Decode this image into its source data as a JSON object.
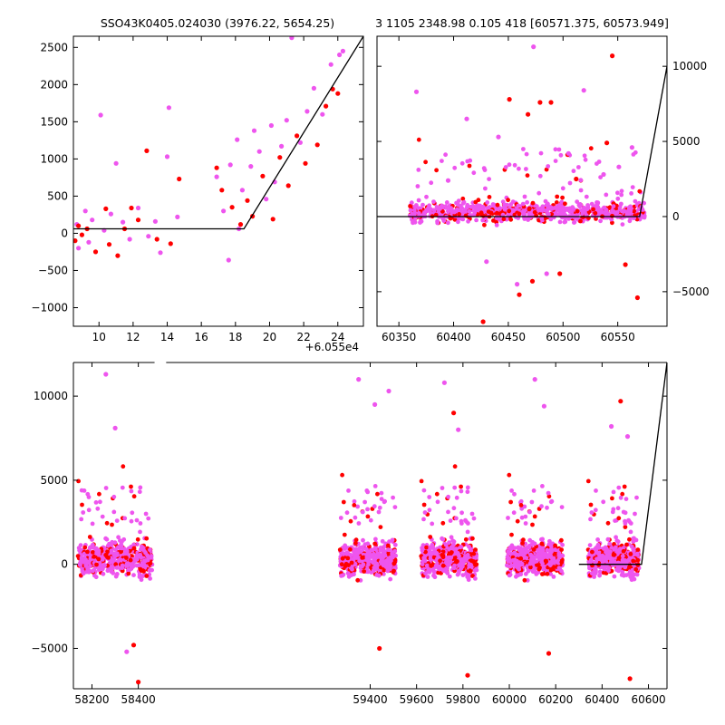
{
  "title_left": "SSO43K0405.024030 (3976.22, 5654.25)",
  "title_right": "3 1105 2348.98 0.105 418 [60571.375, 60573.949]",
  "chart_data": [
    {
      "type": "scatter",
      "panel": "top-left",
      "x_offset_label": "+6.055e4",
      "xlim": [
        8.5,
        25.5
      ],
      "ylim": [
        -1250,
        2650
      ],
      "xticks": [
        10,
        12,
        14,
        16,
        18,
        20,
        22,
        24
      ],
      "yticks": [
        -1000,
        -500,
        0,
        500,
        1000,
        1500,
        2000,
        2500
      ],
      "series": [
        {
          "color": "#ee55ee",
          "values": [
            [
              8.7,
              120
            ],
            [
              8.8,
              -200
            ],
            [
              9.2,
              300
            ],
            [
              9.4,
              -120
            ],
            [
              9.6,
              180
            ],
            [
              10.1,
              1590
            ],
            [
              10.3,
              40
            ],
            [
              10.7,
              260
            ],
            [
              11.0,
              940
            ],
            [
              11.4,
              150
            ],
            [
              11.8,
              -80
            ],
            [
              12.3,
              340
            ],
            [
              12.9,
              -40
            ],
            [
              13.3,
              160
            ],
            [
              13.6,
              -260
            ],
            [
              14.1,
              1690
            ],
            [
              14.0,
              1030
            ],
            [
              14.6,
              220
            ],
            [
              16.9,
              760
            ],
            [
              17.3,
              300
            ],
            [
              17.7,
              920
            ],
            [
              17.6,
              -360
            ],
            [
              18.1,
              1260
            ],
            [
              18.2,
              60
            ],
            [
              18.4,
              580
            ],
            [
              18.9,
              900
            ],
            [
              19.1,
              1380
            ],
            [
              19.4,
              1100
            ],
            [
              19.8,
              460
            ],
            [
              20.1,
              1450
            ],
            [
              20.3,
              690
            ],
            [
              20.7,
              1170
            ],
            [
              21.0,
              1520
            ],
            [
              21.3,
              2630
            ],
            [
              21.8,
              1220
            ],
            [
              22.2,
              1640
            ],
            [
              22.6,
              1950
            ],
            [
              23.1,
              1600
            ],
            [
              23.6,
              2270
            ],
            [
              24.1,
              2400
            ],
            [
              24.3,
              2450
            ]
          ]
        },
        {
          "color": "#ff0000",
          "values": [
            [
              8.6,
              -100
            ],
            [
              8.8,
              100
            ],
            [
              9.0,
              -20
            ],
            [
              9.3,
              60
            ],
            [
              9.8,
              -250
            ],
            [
              10.4,
              330
            ],
            [
              10.6,
              -150
            ],
            [
              11.1,
              -300
            ],
            [
              11.5,
              60
            ],
            [
              11.9,
              340
            ],
            [
              12.3,
              180
            ],
            [
              12.8,
              1110
            ],
            [
              13.4,
              -80
            ],
            [
              14.2,
              -140
            ],
            [
              14.7,
              730
            ],
            [
              16.9,
              880
            ],
            [
              17.2,
              580
            ],
            [
              17.8,
              350
            ],
            [
              18.3,
              120
            ],
            [
              18.7,
              440
            ],
            [
              19.0,
              230
            ],
            [
              19.6,
              770
            ],
            [
              20.2,
              190
            ],
            [
              20.6,
              1020
            ],
            [
              21.1,
              640
            ],
            [
              21.6,
              1310
            ],
            [
              22.1,
              940
            ],
            [
              22.8,
              1190
            ],
            [
              23.3,
              1710
            ],
            [
              23.7,
              1940
            ],
            [
              24.0,
              1880
            ]
          ]
        }
      ],
      "fit_line": [
        [
          8.5,
          60
        ],
        [
          18.5,
          60
        ],
        [
          25.5,
          2650
        ]
      ]
    },
    {
      "type": "scatter",
      "panel": "top-right",
      "xlim": [
        60330,
        60595
      ],
      "ylim": [
        -7300,
        12000
      ],
      "xticks": [
        60350,
        60400,
        60450,
        60500,
        60550
      ],
      "yticks": [
        -5000,
        0,
        5000,
        10000
      ],
      "dense_x_range": [
        60360,
        60575
      ],
      "series": [
        {
          "color": "#ee55ee",
          "values": [
            [
              60366,
              8300
            ],
            [
              60395,
              2400
            ],
            [
              60412,
              6500
            ],
            [
              60430,
              -3000
            ],
            [
              60441,
              5300
            ],
            [
              60458,
              -4500
            ],
            [
              60473,
              11300
            ],
            [
              60485,
              -3800
            ],
            [
              60505,
              4200
            ],
            [
              60519,
              8400
            ],
            [
              60537,
              2800
            ],
            [
              60551,
              3300
            ],
            [
              60563,
              4600
            ]
          ]
        },
        {
          "color": "#ff0000",
          "values": [
            [
              60427,
              -7000
            ],
            [
              60451,
              7800
            ],
            [
              60460,
              -5200
            ],
            [
              60468,
              6800
            ],
            [
              60472,
              -4300
            ],
            [
              60479,
              7600
            ],
            [
              60489,
              7600
            ],
            [
              60497,
              -3800
            ],
            [
              60512,
              2500
            ],
            [
              60540,
              4900
            ],
            [
              60545,
              10700
            ],
            [
              60557,
              -3200
            ],
            [
              60568,
              -5400
            ]
          ]
        }
      ],
      "fit_line": [
        [
          60330,
          0
        ],
        [
          60570,
          0
        ],
        [
          60595,
          10000
        ]
      ]
    },
    {
      "type": "scatter",
      "panel": "bottom",
      "xlim": [
        58120,
        60680
      ],
      "ylim": [
        -7400,
        12000
      ],
      "xticks": [
        58200,
        58400,
        59400,
        59600,
        59800,
        60000,
        60200,
        60400,
        60600
      ],
      "yticks": [
        -5000,
        0,
        5000,
        10000
      ],
      "segments": [
        [
          58140,
          58460
        ],
        [
          59270,
          59510
        ],
        [
          59620,
          59860
        ],
        [
          59990,
          60230
        ],
        [
          60340,
          60560
        ]
      ],
      "series": [
        {
          "color": "#ee55ee",
          "values": [
            [
              58260,
              11300
            ],
            [
              58300,
              8100
            ],
            [
              58350,
              -5200
            ],
            [
              59350,
              11000
            ],
            [
              59420,
              9500
            ],
            [
              59480,
              10300
            ],
            [
              59720,
              10800
            ],
            [
              59780,
              8000
            ],
            [
              60110,
              11000
            ],
            [
              60150,
              9400
            ],
            [
              60440,
              8200
            ],
            [
              60510,
              7600
            ]
          ]
        },
        {
          "color": "#ff0000",
          "values": [
            [
              58380,
              -4800
            ],
            [
              58400,
              -7000
            ],
            [
              59440,
              -5000
            ],
            [
              59760,
              9000
            ],
            [
              59820,
              -6600
            ],
            [
              60170,
              -5300
            ],
            [
              60480,
              9700
            ],
            [
              60520,
              -6800
            ]
          ]
        }
      ],
      "fit_line": [
        [
          60300,
          0
        ],
        [
          60570,
          0
        ],
        [
          60680,
          12000
        ]
      ]
    }
  ]
}
